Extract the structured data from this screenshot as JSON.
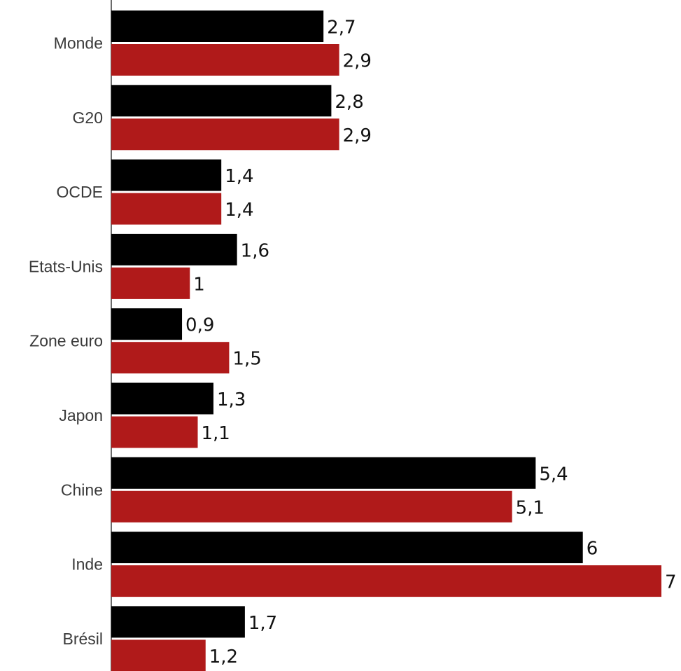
{
  "chart_data": {
    "type": "bar",
    "orientation": "horizontal",
    "categories": [
      "Monde",
      "G20",
      "OCDE",
      "Etats-Unis",
      "Zone euro",
      "Japon",
      "Chine",
      "Inde",
      "Brésil"
    ],
    "series": [
      {
        "color": "#000000",
        "values": [
          2.7,
          2.8,
          1.4,
          1.6,
          0.9,
          1.3,
          5.4,
          6,
          1.7
        ]
      },
      {
        "color": "#b01a1a",
        "values": [
          2.9,
          2.9,
          1.4,
          1.0,
          1.5,
          1.1,
          5.1,
          7,
          1.2
        ]
      }
    ],
    "data_labels": [
      [
        "2,7",
        "2,8",
        "1,4",
        "1,6",
        "0,9",
        "1,3",
        "5,4",
        "6",
        "1,7"
      ],
      [
        "2,9",
        "2,9",
        "1,4",
        "1",
        "1,5",
        "1,1",
        "5,1",
        "7",
        "1,2"
      ]
    ],
    "xlim": [
      0,
      7
    ],
    "grid": false,
    "legend": "none"
  }
}
